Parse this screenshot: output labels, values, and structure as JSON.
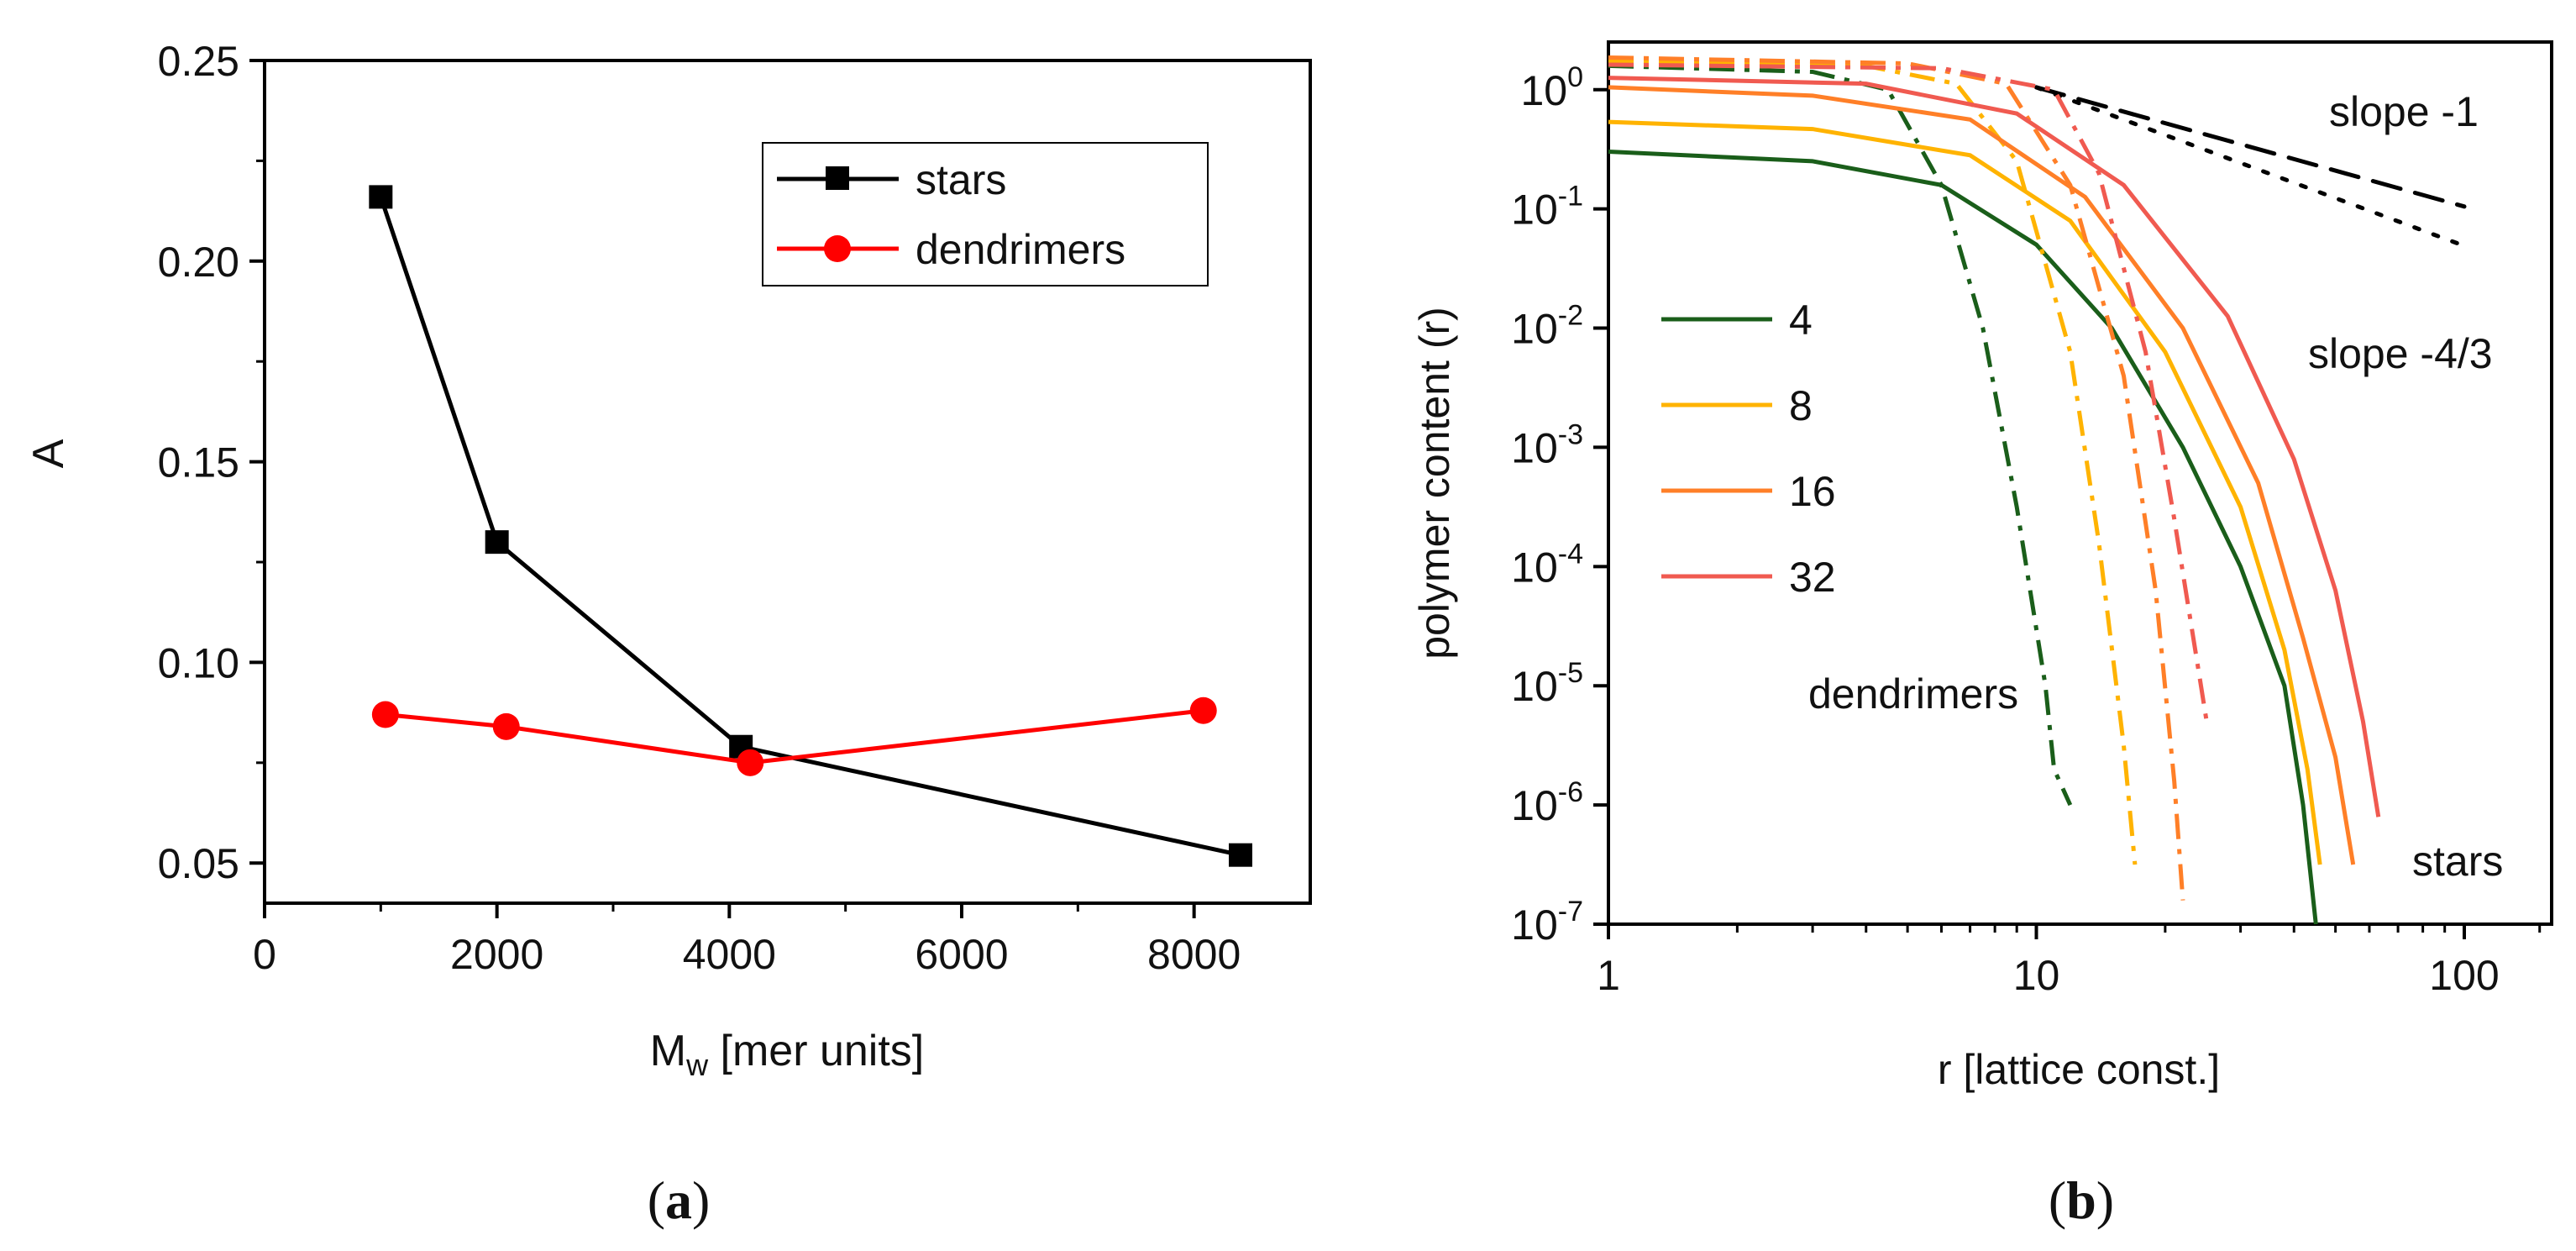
{
  "chart_data": [
    {
      "type": "line",
      "panel_label": "a",
      "xlabel_main": "M",
      "xlabel_sub": "w",
      "xlabel_rest": " [mer units]",
      "ylabel": "A",
      "xlim": [
        0,
        9000
      ],
      "ylim": [
        0.04,
        0.25
      ],
      "xticks": [
        0,
        2000,
        4000,
        6000,
        8000
      ],
      "xtick_labels": [
        "0",
        "2000",
        "4000",
        "6000",
        "8000"
      ],
      "yticks": [
        0.05,
        0.1,
        0.15,
        0.2,
        0.25
      ],
      "ytick_labels": [
        "0.05",
        "0.10",
        "0.15",
        "0.20",
        "0.25"
      ],
      "legend_position": "top-right",
      "series": [
        {
          "name": "stars",
          "color": "#000000",
          "marker": "square",
          "points": [
            [
              1000,
              0.216
            ],
            [
              2000,
              0.13
            ],
            [
              4100,
              0.079
            ],
            [
              8400,
              0.052
            ]
          ]
        },
        {
          "name": "dendrimers",
          "color": "#ff0000",
          "marker": "circle",
          "points": [
            [
              1040,
              0.087
            ],
            [
              2080,
              0.084
            ],
            [
              4180,
              0.075
            ],
            [
              8080,
              0.088
            ]
          ]
        }
      ]
    },
    {
      "type": "line",
      "panel_label": "b",
      "xscale": "log",
      "yscale": "log",
      "xlabel": "r [lattice const.]",
      "ylabel": "polymer content (r)",
      "xlim": [
        1,
        160
      ],
      "ylim_exp": [
        -7,
        0.4
      ],
      "xticks": [
        1,
        10,
        100
      ],
      "xtick_labels": [
        "1",
        "10",
        "100"
      ],
      "ytick_exponents": [
        0,
        -1,
        -2,
        -3,
        -4,
        -5,
        -6,
        -7
      ],
      "ytick_base": "10",
      "legend_position": "left",
      "annotations": {
        "slope1": "slope -1",
        "slope43": "slope -4/3",
        "dendrimers": "dendrimers",
        "stars": "stars"
      },
      "series": [
        {
          "name": "4",
          "color": "#1a5e1a",
          "stars": [
            [
              1,
              -0.52
            ],
            [
              3,
              -0.6
            ],
            [
              6,
              -0.8
            ],
            [
              10,
              -1.3
            ],
            [
              15,
              -2
            ],
            [
              22,
              -3
            ],
            [
              30,
              -4
            ],
            [
              38,
              -5
            ],
            [
              42,
              -6
            ],
            [
              45,
              -7
            ]
          ],
          "dendrimers": [
            [
              1,
              0.2
            ],
            [
              3,
              0.15
            ],
            [
              4.5,
              0
            ],
            [
              6,
              -0.8
            ],
            [
              7.5,
              -2
            ],
            [
              9,
              -3.5
            ],
            [
              10.5,
              -5
            ],
            [
              11,
              -5.7
            ],
            [
              12,
              -6
            ]
          ]
        },
        {
          "name": "8",
          "color": "#ffb300",
          "stars": [
            [
              1,
              -0.27
            ],
            [
              3,
              -0.33
            ],
            [
              7,
              -0.55
            ],
            [
              12,
              -1.1
            ],
            [
              20,
              -2.2
            ],
            [
              30,
              -3.5
            ],
            [
              38,
              -4.7
            ],
            [
              43,
              -5.7
            ],
            [
              46,
              -6.5
            ]
          ],
          "dendrimers": [
            [
              1,
              0.24
            ],
            [
              4,
              0.2
            ],
            [
              6.5,
              0.05
            ],
            [
              9,
              -0.6
            ],
            [
              12,
              -2.2
            ],
            [
              14,
              -3.8
            ],
            [
              16,
              -5.5
            ],
            [
              17,
              -6.5
            ]
          ]
        },
        {
          "name": "16",
          "color": "#ff7f27",
          "stars": [
            [
              1,
              0.02
            ],
            [
              3,
              -0.05
            ],
            [
              7,
              -0.25
            ],
            [
              13,
              -0.9
            ],
            [
              22,
              -2
            ],
            [
              33,
              -3.3
            ],
            [
              42,
              -4.6
            ],
            [
              50,
              -5.6
            ],
            [
              55,
              -6.5
            ]
          ],
          "dendrimers": [
            [
              1,
              0.27
            ],
            [
              5,
              0.22
            ],
            [
              8.5,
              0.05
            ],
            [
              12,
              -0.8
            ],
            [
              16,
              -2.4
            ],
            [
              19,
              -4.2
            ],
            [
              21,
              -5.8
            ],
            [
              22,
              -6.8
            ]
          ]
        },
        {
          "name": "32",
          "color": "#f05a50",
          "stars": [
            [
              1,
              0.1
            ],
            [
              4,
              0.05
            ],
            [
              9,
              -0.2
            ],
            [
              16,
              -0.8
            ],
            [
              28,
              -1.9
            ],
            [
              40,
              -3.1
            ],
            [
              50,
              -4.2
            ],
            [
              58,
              -5.3
            ],
            [
              63,
              -6.1
            ]
          ],
          "dendrimers": [
            [
              1,
              0.21
            ],
            [
              6,
              0.18
            ],
            [
              11,
              0.0
            ],
            [
              14,
              -0.7
            ],
            [
              18,
              -2.2
            ],
            [
              21,
              -3.6
            ],
            [
              24,
              -4.9
            ],
            [
              25,
              -5.3
            ]
          ]
        }
      ],
      "reference_lines": [
        {
          "label": "slope -1",
          "style": "dashed",
          "from": [
            10,
            0.02
          ],
          "to": [
            100,
            -0.98
          ]
        },
        {
          "label": "slope -4/3",
          "style": "dotted",
          "from": [
            10,
            0.02
          ],
          "to": [
            100,
            -1.31
          ]
        }
      ]
    }
  ]
}
